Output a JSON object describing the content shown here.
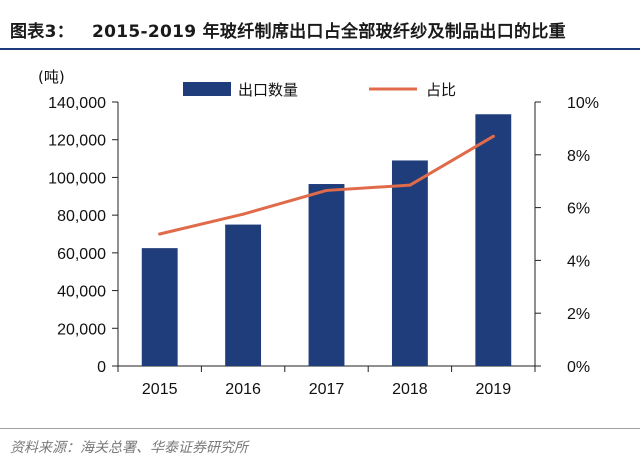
{
  "header": {
    "figure_label": "图表3：",
    "title": "2015-2019 年玻纤制席出口占全部玻纤纱及制品出口的比重"
  },
  "footer": {
    "source": "资料来源：海关总署、华泰证券研究所"
  },
  "chart_data": {
    "type": "bar+line",
    "categories": [
      "2015",
      "2016",
      "2017",
      "2018",
      "2019"
    ],
    "series": [
      {
        "name": "出口数量",
        "type": "bar",
        "axis": "left",
        "color": "#1f3d7a",
        "values": [
          62500,
          75000,
          96500,
          109000,
          133500
        ]
      },
      {
        "name": "占比",
        "type": "line",
        "axis": "right",
        "color": "#e06b4b",
        "values": [
          5.0,
          5.75,
          6.65,
          6.85,
          8.7
        ]
      }
    ],
    "y_left": {
      "unit": "(吨)",
      "lim": [
        0,
        140000
      ],
      "ticks": [
        0,
        20000,
        40000,
        60000,
        80000,
        100000,
        120000,
        140000
      ],
      "tick_labels": [
        "0",
        "20,000",
        "40,000",
        "60,000",
        "80,000",
        "100,000",
        "120,000",
        "140,000"
      ]
    },
    "y_right": {
      "lim": [
        0,
        10
      ],
      "ticks": [
        0,
        2,
        4,
        6,
        8,
        10
      ],
      "tick_labels": [
        "0%",
        "2%",
        "4%",
        "6%",
        "8%",
        "10%"
      ]
    },
    "legend": {
      "placement": "top-center",
      "items": [
        "出口数量",
        "占比"
      ]
    },
    "grid": false
  }
}
